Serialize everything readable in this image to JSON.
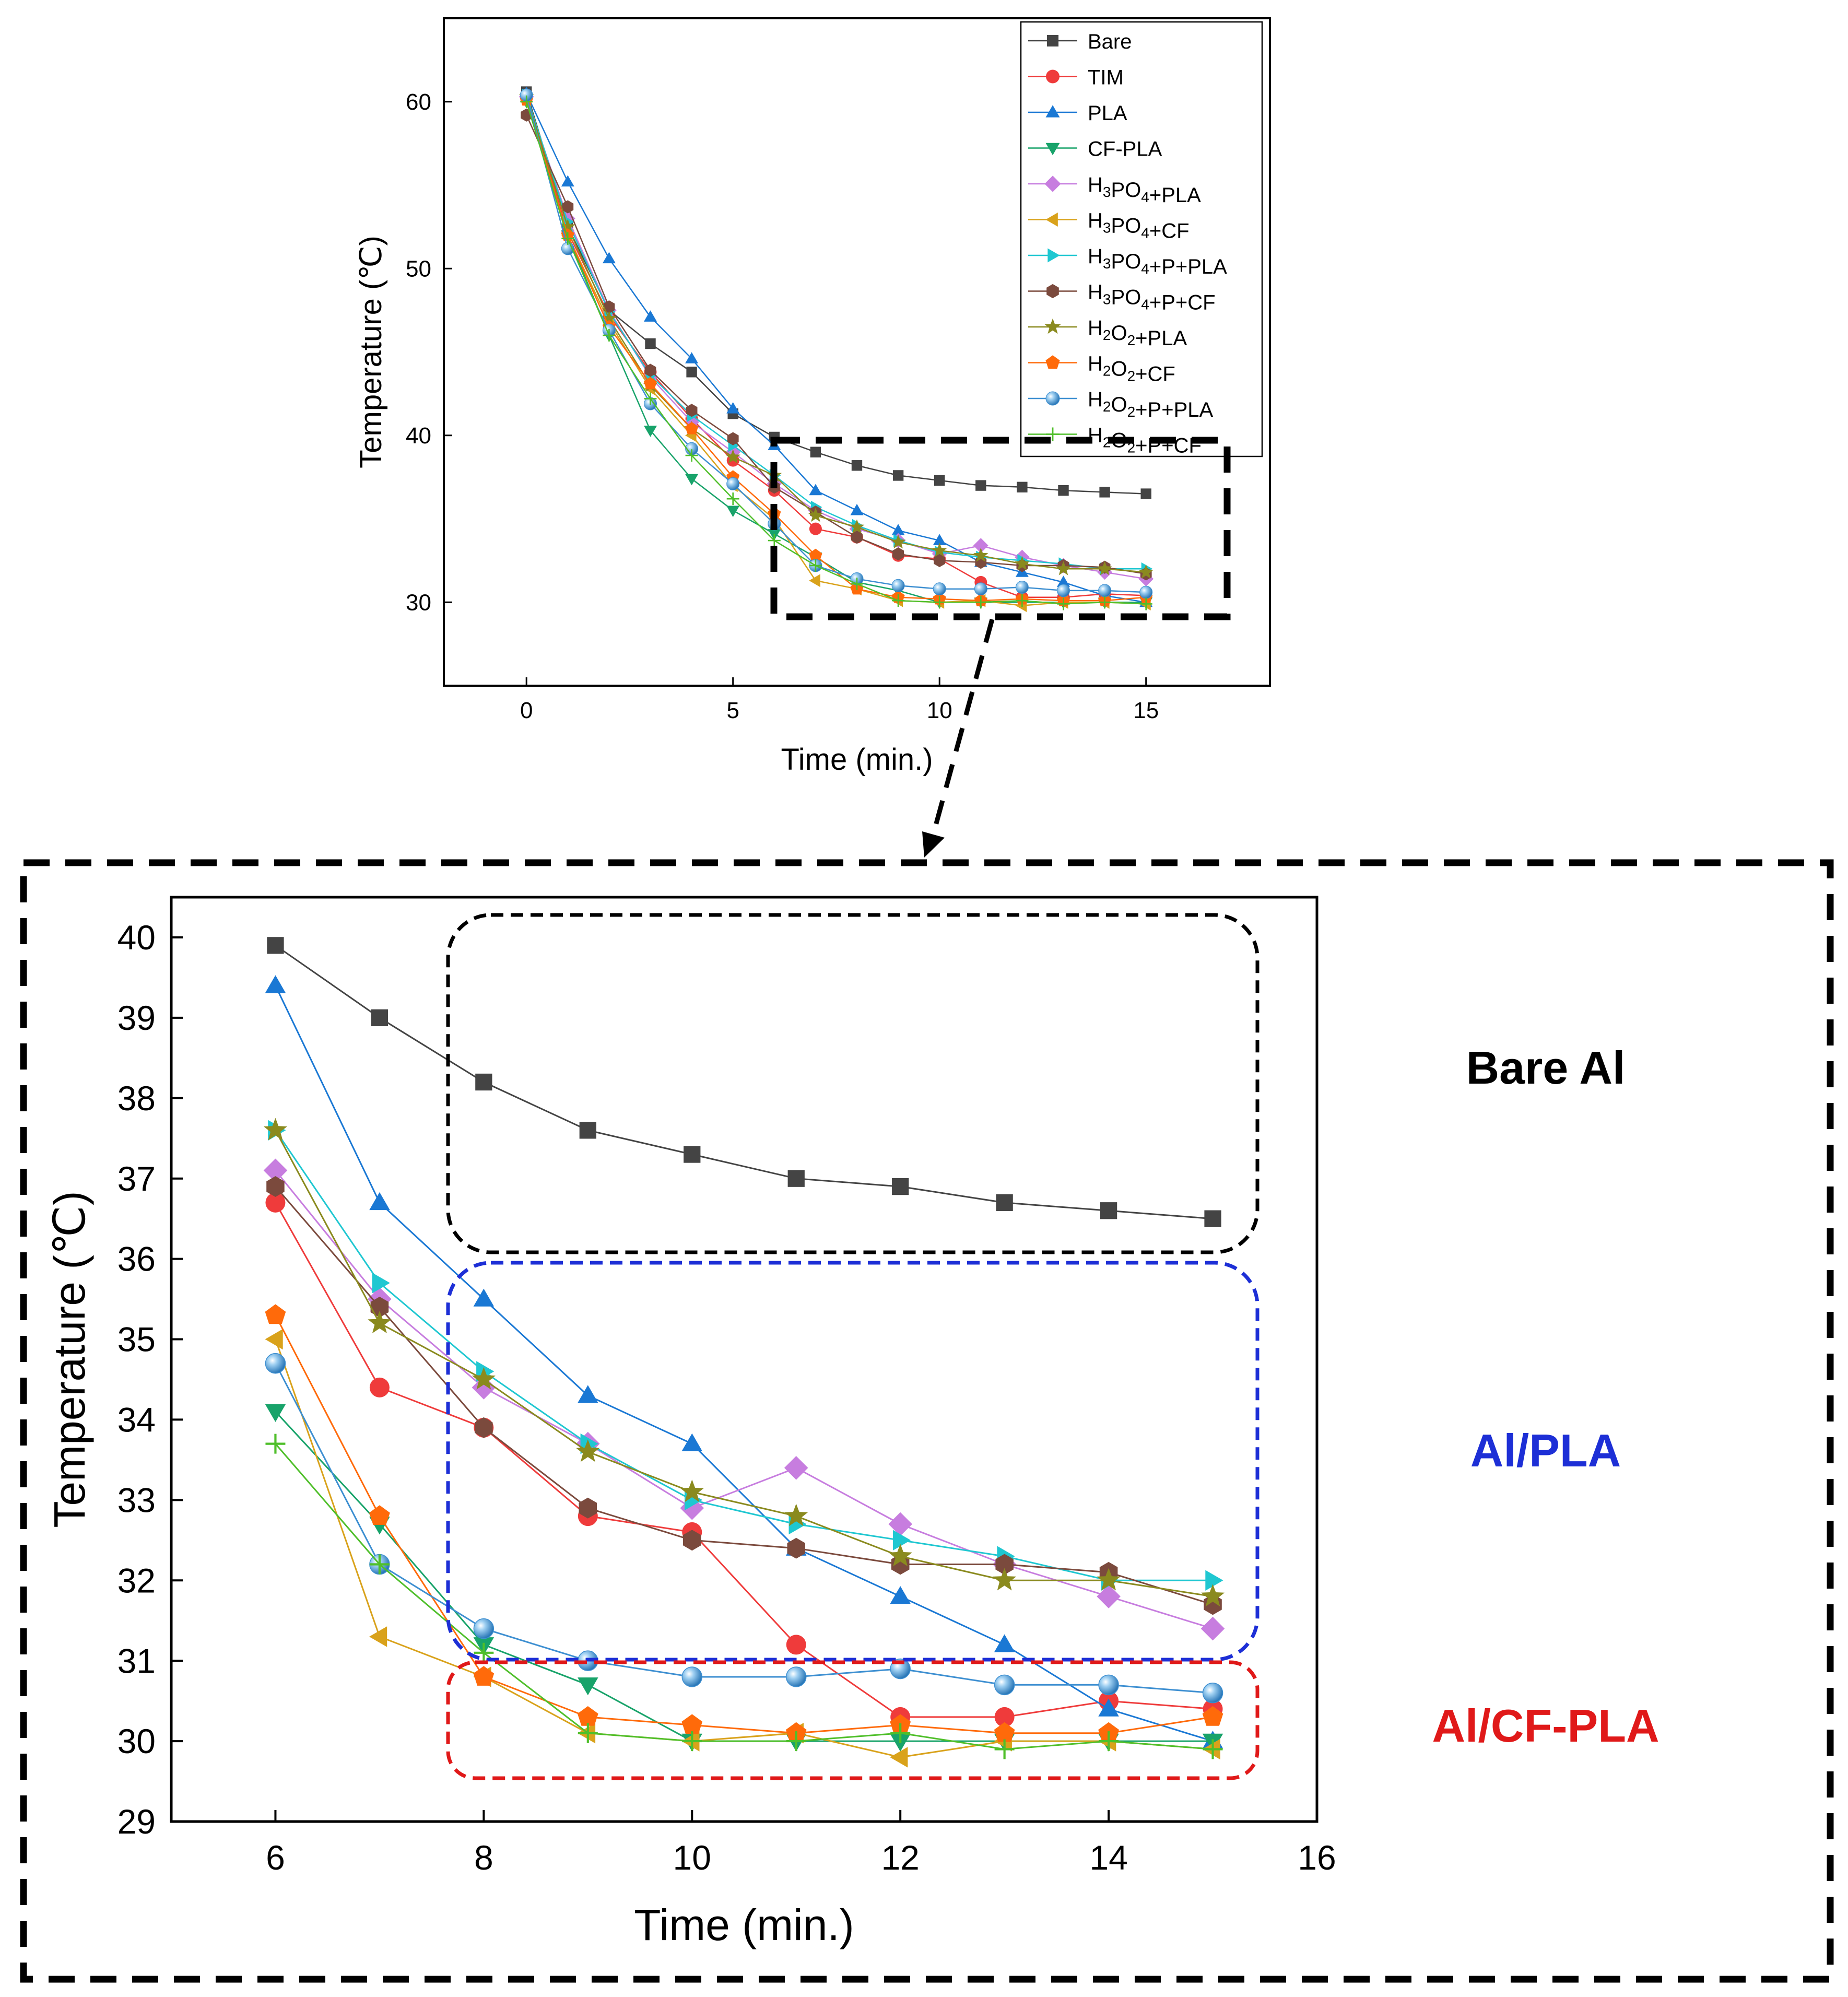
{
  "colors": {
    "Bare": "#444444",
    "TIM": "#ef3b3b",
    "PLA": "#1a78d4",
    "CF-PLA": "#18a36a",
    "H3PO4+PLA": "#c77ddf",
    "H3PO4+CF": "#d9a21b",
    "H3PO4+P+PLA": "#1fc7d1",
    "H3PO4+P+CF": "#7b4a3d",
    "H2O2+PLA": "#8a8a1e",
    "H2O2+CF": "#ff6a0a",
    "H2O2+P+PLA": "#3d8fd1",
    "H2O2+P+CF": "#4fbf2a",
    "bare_box": "#000000",
    "pla_box": "#1d2fd6",
    "cfpla_box": "#e01919"
  },
  "chart_data": [
    {
      "type": "line",
      "panel": "overview",
      "title": "",
      "xlabel": "Time (min.)",
      "ylabel": "Temperature (℃)",
      "xlim": [
        -2,
        18
      ],
      "ylim": [
        25,
        65
      ],
      "xticks": [
        "0",
        "5",
        "10",
        "15"
      ],
      "xtick_values": [
        0,
        5,
        10,
        15
      ],
      "yticks": [
        "30",
        "40",
        "50",
        "60"
      ],
      "ytick_values": [
        30,
        40,
        50,
        60
      ],
      "legend_position": "top-right",
      "x": [
        0,
        1,
        2,
        3,
        4,
        5,
        6,
        7,
        8,
        9,
        10,
        11,
        12,
        13,
        14,
        15
      ],
      "series": [
        {
          "key": "Bare",
          "name": "Bare",
          "marker": "square",
          "values": [
            60.6,
            52.5,
            47.5,
            45.5,
            43.8,
            41.3,
            39.9,
            39.0,
            38.2,
            37.6,
            37.3,
            37.0,
            36.9,
            36.7,
            36.6,
            36.5
          ]
        },
        {
          "key": "TIM",
          "name": "TIM",
          "marker": "circle",
          "values": [
            60.2,
            52.2,
            47.2,
            43.8,
            41.0,
            38.5,
            36.7,
            34.4,
            33.9,
            32.8,
            32.6,
            31.2,
            30.3,
            30.3,
            30.5,
            30.4
          ]
        },
        {
          "key": "PLA",
          "name": "PLA",
          "marker": "triangle-up",
          "values": [
            60.5,
            55.2,
            50.6,
            47.1,
            44.6,
            41.6,
            39.4,
            36.7,
            35.5,
            34.3,
            33.7,
            32.4,
            31.8,
            31.2,
            30.4,
            30.0
          ]
        },
        {
          "key": "CF-PLA",
          "name": "CF-PLA",
          "marker": "triangle-down",
          "values": [
            60.0,
            52.0,
            46.0,
            40.3,
            37.4,
            35.5,
            34.1,
            32.7,
            31.2,
            30.7,
            30.0,
            30.0,
            30.0,
            30.0,
            30.0,
            30.0
          ]
        },
        {
          "key": "H3PO4+PLA",
          "name": "H3PO4+PLA",
          "marker": "diamond",
          "values": [
            60.3,
            53.0,
            47.5,
            43.5,
            40.8,
            39.0,
            37.1,
            35.5,
            34.4,
            33.7,
            32.9,
            33.4,
            32.7,
            32.2,
            31.8,
            31.4
          ]
        },
        {
          "key": "H3PO4+CF",
          "name": "H3PO4+CF",
          "marker": "triangle-left",
          "values": [
            60.1,
            52.0,
            46.8,
            42.8,
            40.0,
            37.0,
            35.0,
            31.3,
            30.8,
            30.1,
            30.0,
            30.1,
            29.8,
            30.0,
            30.0,
            29.9
          ]
        },
        {
          "key": "H3PO4+P+PLA",
          "name": "H3PO4+P+PLA",
          "marker": "triangle-right",
          "values": [
            60.4,
            52.8,
            47.4,
            43.6,
            41.2,
            39.4,
            37.6,
            35.7,
            34.6,
            33.7,
            33.0,
            32.7,
            32.5,
            32.3,
            32.0,
            32.0
          ]
        },
        {
          "key": "H3PO4+P+CF",
          "name": "H3PO4+P+CF",
          "marker": "hexagon",
          "values": [
            59.2,
            53.7,
            47.7,
            43.9,
            41.5,
            39.8,
            36.9,
            35.4,
            33.9,
            32.9,
            32.5,
            32.4,
            32.2,
            32.2,
            32.1,
            31.7
          ]
        },
        {
          "key": "H2O2+PLA",
          "name": "H2O2+PLA",
          "marker": "star",
          "values": [
            60.3,
            52.5,
            47.0,
            43.0,
            40.4,
            38.7,
            37.6,
            35.2,
            34.5,
            33.6,
            33.1,
            32.8,
            32.3,
            32.0,
            32.0,
            31.8
          ]
        },
        {
          "key": "H2O2+CF",
          "name": "H2O2+CF",
          "marker": "pentagon",
          "values": [
            60.1,
            52.0,
            46.5,
            43.1,
            40.4,
            37.5,
            35.3,
            32.8,
            30.8,
            30.3,
            30.2,
            30.1,
            30.2,
            30.1,
            30.1,
            30.3
          ]
        },
        {
          "key": "H2O2+P+PLA",
          "name": "H2O2+P+PLA",
          "marker": "sphere",
          "values": [
            60.4,
            51.2,
            46.3,
            41.9,
            39.2,
            37.1,
            34.7,
            32.2,
            31.4,
            31.0,
            30.8,
            30.8,
            30.9,
            30.7,
            30.7,
            30.6
          ]
        },
        {
          "key": "H2O2+P+CF",
          "name": "H2O2+P+CF",
          "marker": "plus",
          "values": [
            60.0,
            51.8,
            46.0,
            42.2,
            38.8,
            36.2,
            33.7,
            32.2,
            31.1,
            30.1,
            30.0,
            30.0,
            30.1,
            29.9,
            30.0,
            29.9
          ]
        }
      ]
    },
    {
      "type": "line",
      "panel": "zoom",
      "title": "",
      "xlabel": "Time (min.)",
      "ylabel": "Temperature (℃)",
      "xlim": [
        5,
        16
      ],
      "ylim": [
        29,
        40.5
      ],
      "xticks": [
        "6",
        "8",
        "10",
        "12",
        "14",
        "16"
      ],
      "xtick_values": [
        6,
        8,
        10,
        12,
        14,
        16
      ],
      "yticks": [
        "29",
        "30",
        "31",
        "32",
        "33",
        "34",
        "35",
        "36",
        "37",
        "38",
        "39",
        "40"
      ],
      "ytick_values": [
        29,
        30,
        31,
        32,
        33,
        34,
        35,
        36,
        37,
        38,
        39,
        40
      ],
      "x": [
        6,
        7,
        8,
        9,
        10,
        11,
        12,
        13,
        14,
        15
      ],
      "series_source": "same series as overview panel, times 6 to 15 min",
      "group_labels": [
        "Bare Al",
        "Al/PLA",
        "Al/CF-PLA"
      ]
    }
  ]
}
